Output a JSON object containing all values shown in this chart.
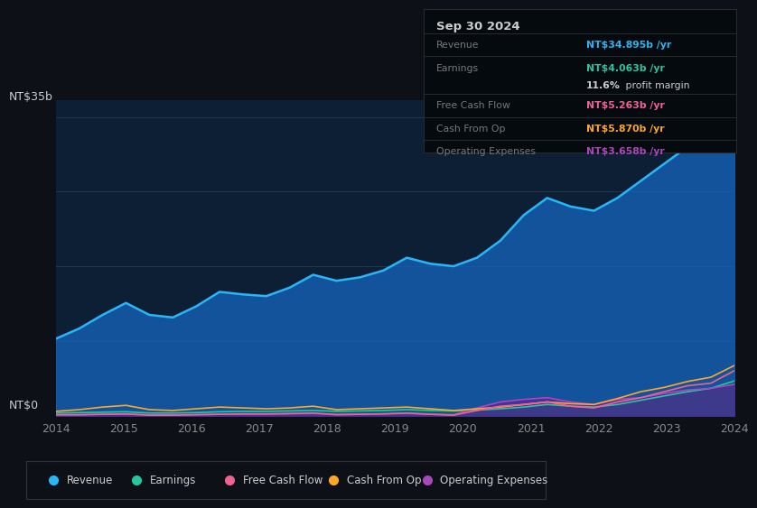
{
  "bg_color": "#0d1117",
  "plot_bg_color": "#0d1f35",
  "ylabel_top": "NT$35b",
  "ylabel_bottom": "NT$0",
  "x_labels": [
    "2014",
    "2015",
    "2016",
    "2017",
    "2018",
    "2019",
    "2020",
    "2021",
    "2022",
    "2023",
    "2024"
  ],
  "legend": [
    {
      "label": "Revenue",
      "color": "#29b6f6"
    },
    {
      "label": "Earnings",
      "color": "#26c6a0"
    },
    {
      "label": "Free Cash Flow",
      "color": "#f06292"
    },
    {
      "label": "Cash From Op",
      "color": "#ffa726"
    },
    {
      "label": "Operating Expenses",
      "color": "#ab47bc"
    }
  ],
  "info_box": {
    "date": "Sep 30 2024",
    "revenue_label": "Revenue",
    "revenue_value": "NT$34.895b",
    "revenue_suffix": " /yr",
    "revenue_color": "#29b6f6",
    "earnings_label": "Earnings",
    "earnings_value": "NT$4.063b",
    "earnings_suffix": " /yr",
    "earnings_color": "#26c6a0",
    "profit_margin_bold": "11.6%",
    "profit_margin_rest": " profit margin",
    "fcf_label": "Free Cash Flow",
    "fcf_value": "NT$5.263b",
    "fcf_suffix": " /yr",
    "fcf_color": "#f06292",
    "cfo_label": "Cash From Op",
    "cfo_value": "NT$5.870b",
    "cfo_suffix": " /yr",
    "cfo_color": "#ffa726",
    "opex_label": "Operating Expenses",
    "opex_value": "NT$3.658b",
    "opex_suffix": " /yr",
    "opex_color": "#ab47bc"
  },
  "revenue": [
    9.0,
    10.2,
    11.8,
    13.2,
    11.8,
    11.5,
    12.8,
    14.5,
    14.2,
    14.0,
    15.0,
    16.5,
    15.8,
    16.2,
    17.0,
    18.5,
    17.8,
    17.5,
    18.5,
    20.5,
    23.5,
    25.5,
    24.5,
    24.0,
    25.5,
    27.5,
    29.5,
    31.5,
    31.0,
    35.0
  ],
  "earnings": [
    0.3,
    0.35,
    0.4,
    0.45,
    0.3,
    0.3,
    0.35,
    0.45,
    0.5,
    0.5,
    0.55,
    0.6,
    0.5,
    0.55,
    0.6,
    0.7,
    0.6,
    0.55,
    0.65,
    0.8,
    1.0,
    1.3,
    1.1,
    1.0,
    1.3,
    1.8,
    2.3,
    2.8,
    3.2,
    4.063
  ],
  "free_cash_flow": [
    0.1,
    0.1,
    0.15,
    0.2,
    0.05,
    0.05,
    0.1,
    0.15,
    0.2,
    0.2,
    0.25,
    0.3,
    0.1,
    0.15,
    0.2,
    0.3,
    0.15,
    0.05,
    0.6,
    1.1,
    1.3,
    1.6,
    1.1,
    0.9,
    1.6,
    2.1,
    2.8,
    3.5,
    3.8,
    5.263
  ],
  "cash_from_op": [
    0.5,
    0.7,
    1.0,
    1.2,
    0.7,
    0.6,
    0.8,
    1.0,
    0.9,
    0.8,
    0.9,
    1.1,
    0.7,
    0.8,
    0.9,
    1.0,
    0.8,
    0.6,
    0.8,
    1.0,
    1.3,
    1.6,
    1.4,
    1.3,
    2.0,
    2.8,
    3.3,
    4.0,
    4.5,
    5.87
  ],
  "operating_expenses": [
    0.1,
    0.1,
    0.15,
    0.15,
    0.1,
    0.1,
    0.12,
    0.15,
    0.15,
    0.15,
    0.2,
    0.25,
    0.15,
    0.18,
    0.2,
    0.25,
    0.18,
    0.1,
    0.9,
    1.6,
    1.9,
    2.1,
    1.6,
    1.3,
    1.9,
    2.1,
    2.6,
    3.0,
    3.2,
    3.658
  ],
  "ylim": [
    0,
    37
  ],
  "n_points": 30,
  "grid_y_vals": [
    0,
    8.75,
    17.5,
    26.25,
    35
  ]
}
